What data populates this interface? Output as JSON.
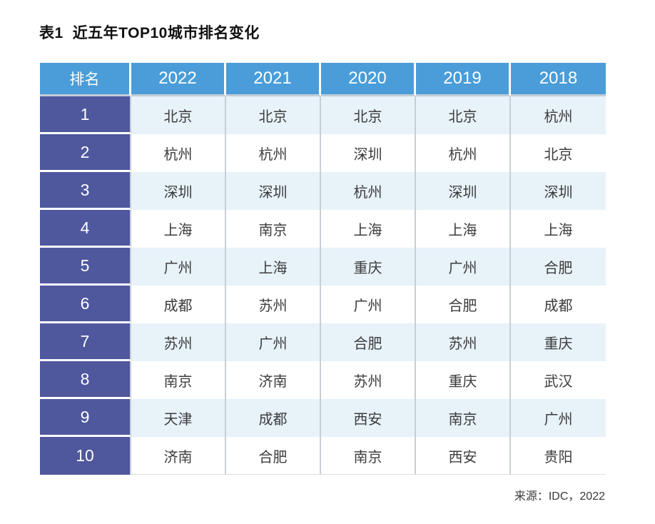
{
  "title": {
    "label": "表1",
    "text": "近五年TOP10城市排名变化"
  },
  "source": "来源：IDC，2022",
  "colors": {
    "header_bg": "#4A9DD8",
    "rank_column_bg": "#4F579D",
    "row_alt_bg": "#E7F2F9",
    "row_bg": "#FFFFFF",
    "grid_line": "#C9CED5",
    "header_text": "#FFFFFF",
    "cell_text": "#3C3C3C"
  },
  "chart_data": {
    "type": "table",
    "title": "表1 近五年TOP10城市排名变化",
    "columns": [
      "排名",
      "2022",
      "2021",
      "2020",
      "2019",
      "2018"
    ],
    "rows": [
      [
        "1",
        "北京",
        "北京",
        "北京",
        "北京",
        "杭州"
      ],
      [
        "2",
        "杭州",
        "杭州",
        "深圳",
        "杭州",
        "北京"
      ],
      [
        "3",
        "深圳",
        "深圳",
        "杭州",
        "深圳",
        "深圳"
      ],
      [
        "4",
        "上海",
        "南京",
        "上海",
        "上海",
        "上海"
      ],
      [
        "5",
        "广州",
        "上海",
        "重庆",
        "广州",
        "合肥"
      ],
      [
        "6",
        "成都",
        "苏州",
        "广州",
        "合肥",
        "成都"
      ],
      [
        "7",
        "苏州",
        "广州",
        "合肥",
        "苏州",
        "重庆"
      ],
      [
        "8",
        "南京",
        "济南",
        "苏州",
        "重庆",
        "武汉"
      ],
      [
        "9",
        "天津",
        "成都",
        "西安",
        "南京",
        "广州"
      ],
      [
        "10",
        "济南",
        "合肥",
        "南京",
        "西安",
        "贵阳"
      ]
    ],
    "source": "来源：IDC，2022"
  }
}
